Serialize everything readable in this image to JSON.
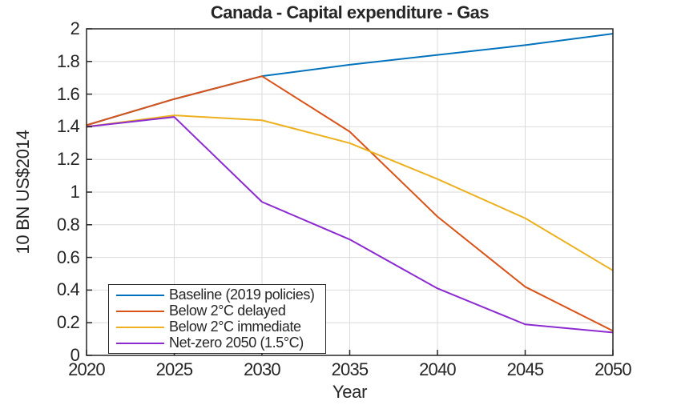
{
  "chart_data": {
    "type": "line",
    "title": "Canada - Capital expenditure - Gas",
    "xlabel": "Year",
    "ylabel": "10 BN US$2014",
    "x": [
      2020,
      2025,
      2030,
      2035,
      2040,
      2045,
      2050
    ],
    "x_tick_labels": [
      "2020",
      "2025",
      "2030",
      "2035",
      "2040",
      "2045",
      "2050"
    ],
    "xlim": [
      2020,
      2050
    ],
    "y_ticks": [
      0,
      0.2,
      0.4,
      0.6,
      0.8,
      1,
      1.2,
      1.4,
      1.6,
      1.8,
      2
    ],
    "y_tick_labels": [
      "0",
      "0.2",
      "0.4",
      "0.6",
      "0.8",
      "1",
      "1.2",
      "1.4",
      "1.6",
      "1.8",
      "2"
    ],
    "ylim": [
      0,
      2
    ],
    "grid": true,
    "legend_position": "inside-bottom-left",
    "series": [
      {
        "name": "Baseline (2019 policies)",
        "color": "#0072BD",
        "values": [
          1.41,
          1.57,
          1.71,
          1.78,
          1.84,
          1.9,
          1.97
        ]
      },
      {
        "name": "Below 2°C delayed",
        "color": "#D95319",
        "values": [
          1.41,
          1.57,
          1.71,
          1.37,
          0.85,
          0.42,
          0.15
        ]
      },
      {
        "name": "Below 2°C immediate",
        "color": "#EDB120",
        "values": [
          1.4,
          1.47,
          1.44,
          1.3,
          1.08,
          0.84,
          0.52
        ]
      },
      {
        "name": "Net-zero 2050 (1.5°C)",
        "color": "#8C2BD0",
        "values": [
          1.4,
          1.46,
          0.94,
          0.71,
          0.41,
          0.19,
          0.14
        ]
      }
    ],
    "colors": {
      "axis": "#262626",
      "grid": "#DBDBDB",
      "background": "#FFFFFF",
      "text": "#262626"
    }
  }
}
